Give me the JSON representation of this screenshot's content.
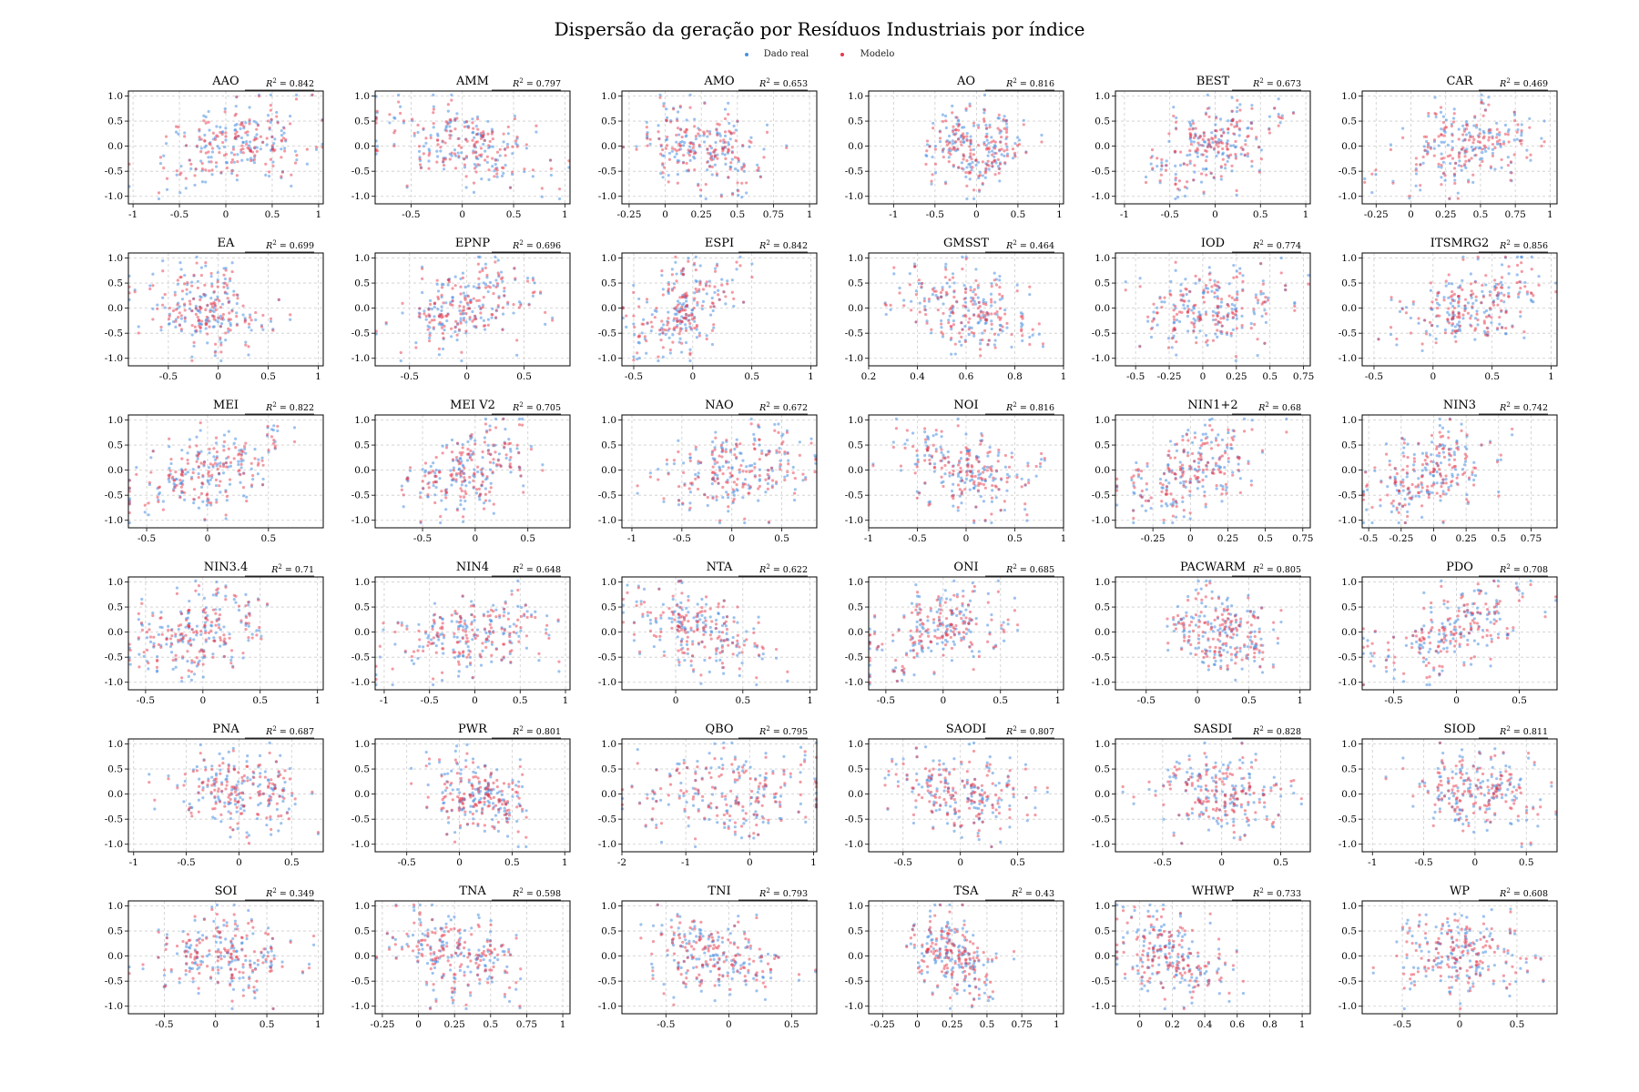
{
  "title": "Dispersão da geração por Resíduos Industriais por índice",
  "legend": [
    {
      "label": "Dado real",
      "color": "#4a90e2"
    },
    {
      "label": "Modelo",
      "color": "#e8374a"
    }
  ],
  "colors": {
    "real": "#4a90e2",
    "model": "#e8374a",
    "grid": "#cccccc",
    "axis": "#000000"
  },
  "chart_data": {
    "type": "scatter",
    "layout": "6x6 grid of small multiples",
    "grid": true,
    "ylim": [
      -1.15,
      1.1
    ],
    "yticks": [
      -1.0,
      -0.5,
      0.0,
      0.5,
      1.0
    ],
    "series_names": [
      "Dado real",
      "Modelo"
    ],
    "panels": [
      {
        "title": "AAO",
        "r2": "0.842",
        "xlim": [
          -1.05,
          1.05
        ],
        "xticks": [
          -1.0,
          -0.5,
          0.0,
          0.5,
          1.0
        ],
        "center": 0.1,
        "spread": 0.42,
        "slope": 0.4
      },
      {
        "title": "AMM",
        "r2": "0.797",
        "xlim": [
          -0.85,
          1.05
        ],
        "xticks": [
          -0.5,
          0.0,
          0.5,
          1.0
        ],
        "center": 0.0,
        "spread": 0.38,
        "slope": -0.5
      },
      {
        "title": "AMO",
        "r2": "0.653",
        "xlim": [
          -0.3,
          1.05
        ],
        "xticks": [
          -0.25,
          0.0,
          0.25,
          0.5,
          0.75,
          1.0
        ],
        "center": 0.25,
        "spread": 0.22,
        "slope": -0.3
      },
      {
        "title": "AO",
        "r2": "0.816",
        "xlim": [
          -1.3,
          1.05
        ],
        "xticks": [
          -1.0,
          -0.5,
          0.0,
          0.5,
          1.0
        ],
        "center": 0.0,
        "spread": 0.3,
        "slope": 0.1
      },
      {
        "title": "BEST",
        "r2": "0.673",
        "xlim": [
          -1.1,
          1.05
        ],
        "xticks": [
          -1.0,
          -0.5,
          0.0,
          0.5,
          1.0
        ],
        "center": -0.05,
        "spread": 0.35,
        "slope": 0.5
      },
      {
        "title": "CAR",
        "r2": "0.469",
        "xlim": [
          -0.35,
          1.05
        ],
        "xticks": [
          -0.25,
          0.0,
          0.25,
          0.5,
          0.75,
          1.0
        ],
        "center": 0.4,
        "spread": 0.25,
        "slope": 0.4
      },
      {
        "title": "EA",
        "r2": "0.699",
        "xlim": [
          -0.9,
          1.05
        ],
        "xticks": [
          -0.5,
          0.0,
          0.5,
          1.0
        ],
        "center": -0.1,
        "spread": 0.3,
        "slope": -0.2
      },
      {
        "title": "EPNP",
        "r2": "0.696",
        "xlim": [
          -0.8,
          0.9
        ],
        "xticks": [
          -0.5,
          0.0,
          0.5
        ],
        "center": 0.0,
        "spread": 0.28,
        "slope": 0.4
      },
      {
        "title": "ESPI",
        "r2": "0.842",
        "xlim": [
          -0.6,
          1.05
        ],
        "xticks": [
          -0.5,
          0.0,
          0.5,
          1.0
        ],
        "center": -0.1,
        "spread": 0.25,
        "slope": 0.5
      },
      {
        "title": "GMSST",
        "r2": "0.464",
        "xlim": [
          0.2,
          1.0
        ],
        "xticks": [
          0.2,
          0.4,
          0.6,
          0.8,
          1.0
        ],
        "center": 0.6,
        "spread": 0.14,
        "slope": -0.4
      },
      {
        "title": "IOD",
        "r2": "0.774",
        "xlim": [
          -0.65,
          0.8
        ],
        "xticks": [
          -0.5,
          -0.25,
          0.0,
          0.25,
          0.5,
          0.75
        ],
        "center": 0.05,
        "spread": 0.25,
        "slope": 0.2
      },
      {
        "title": "ITSMRG2",
        "r2": "0.856",
        "xlim": [
          -0.6,
          1.05
        ],
        "xticks": [
          -0.5,
          0.0,
          0.5,
          1.0
        ],
        "center": 0.3,
        "spread": 0.3,
        "slope": 0.5
      },
      {
        "title": "MEI",
        "r2": "0.822",
        "xlim": [
          -0.65,
          0.95
        ],
        "xticks": [
          -0.5,
          0.0,
          0.5
        ],
        "center": 0.0,
        "spread": 0.3,
        "slope": 0.7
      },
      {
        "title": "MEI V2",
        "r2": "0.705",
        "xlim": [
          -0.95,
          0.9
        ],
        "xticks": [
          -0.5,
          0.0,
          0.5
        ],
        "center": -0.1,
        "spread": 0.3,
        "slope": 0.6
      },
      {
        "title": "NAO",
        "r2": "0.672",
        "xlim": [
          -1.1,
          0.85
        ],
        "xticks": [
          -1.0,
          -0.5,
          0.0,
          0.5
        ],
        "center": 0.0,
        "spread": 0.35,
        "slope": 0.3
      },
      {
        "title": "NOI",
        "r2": "0.816",
        "xlim": [
          -1.0,
          1.0
        ],
        "xticks": [
          -1.0,
          -0.5,
          0.0,
          0.5,
          1.0
        ],
        "center": 0.0,
        "spread": 0.35,
        "slope": -0.3
      },
      {
        "title": "NIN1+2",
        "r2": "0.68",
        "xlim": [
          -0.5,
          0.8
        ],
        "xticks": [
          -0.25,
          0.0,
          0.25,
          0.5,
          0.75
        ],
        "center": 0.0,
        "spread": 0.22,
        "slope": 0.5
      },
      {
        "title": "NIN3",
        "r2": "0.742",
        "xlim": [
          -0.55,
          0.95
        ],
        "xticks": [
          -0.5,
          -0.25,
          0.0,
          0.25,
          0.5,
          0.75
        ],
        "center": 0.0,
        "spread": 0.25,
        "slope": 0.7
      },
      {
        "title": "NIN3.4",
        "r2": "0.71",
        "xlim": [
          -0.65,
          1.05
        ],
        "xticks": [
          -0.5,
          0.0,
          0.5,
          1.0
        ],
        "center": -0.05,
        "spread": 0.3,
        "slope": 0.4
      },
      {
        "title": "NIN4",
        "r2": "0.648",
        "xlim": [
          -1.1,
          1.05
        ],
        "xticks": [
          -1.0,
          -0.5,
          0.0,
          0.5,
          1.0
        ],
        "center": 0.0,
        "spread": 0.4,
        "slope": 0.3
      },
      {
        "title": "NTA",
        "r2": "0.622",
        "xlim": [
          -0.4,
          1.05
        ],
        "xticks": [
          0.0,
          0.5,
          1.0
        ],
        "center": 0.2,
        "spread": 0.25,
        "slope": -0.5
      },
      {
        "title": "ONI",
        "r2": "0.685",
        "xlim": [
          -0.65,
          1.05
        ],
        "xticks": [
          -0.5,
          0.0,
          0.5,
          1.0
        ],
        "center": -0.05,
        "spread": 0.3,
        "slope": 0.5
      },
      {
        "title": "PACWARM",
        "r2": "0.805",
        "xlim": [
          -0.8,
          1.1
        ],
        "xticks": [
          -0.5,
          0.0,
          0.5,
          1.0
        ],
        "center": 0.25,
        "spread": 0.25,
        "slope": -0.4
      },
      {
        "title": "PDO",
        "r2": "0.708",
        "xlim": [
          -0.75,
          0.8
        ],
        "xticks": [
          -0.5,
          0.0,
          0.5
        ],
        "center": -0.05,
        "spread": 0.28,
        "slope": 0.6
      },
      {
        "title": "PNA",
        "r2": "0.687",
        "xlim": [
          -1.05,
          0.8
        ],
        "xticks": [
          -1.0,
          -0.5,
          0.0,
          0.5
        ],
        "center": 0.0,
        "spread": 0.3,
        "slope": -0.3
      },
      {
        "title": "PWR",
        "r2": "0.801",
        "xlim": [
          -0.8,
          1.05
        ],
        "xticks": [
          -0.5,
          0.0,
          0.5,
          1.0
        ],
        "center": 0.2,
        "spread": 0.25,
        "slope": -0.4
      },
      {
        "title": "QBO",
        "r2": "0.795",
        "xlim": [
          -2.0,
          1.05
        ],
        "xticks": [
          -2,
          -1,
          0,
          1
        ],
        "center": -0.3,
        "spread": 0.8,
        "slope": 0.15
      },
      {
        "title": "SAODI",
        "r2": "0.807",
        "xlim": [
          -0.8,
          0.9
        ],
        "xticks": [
          -0.5,
          0.0,
          0.5
        ],
        "center": 0.0,
        "spread": 0.3,
        "slope": -0.2
      },
      {
        "title": "SASDI",
        "r2": "0.828",
        "xlim": [
          -0.9,
          0.75
        ],
        "xticks": [
          -0.5,
          0.0,
          0.5
        ],
        "center": 0.0,
        "spread": 0.25,
        "slope": -0.2
      },
      {
        "title": "SIOD",
        "r2": "0.811",
        "xlim": [
          -1.1,
          0.8
        ],
        "xticks": [
          -1.0,
          -0.5,
          0.0,
          0.5
        ],
        "center": 0.0,
        "spread": 0.3,
        "slope": -0.3
      },
      {
        "title": "SOI",
        "r2": "0.349",
        "xlim": [
          -0.85,
          1.05
        ],
        "xticks": [
          -0.5,
          0.0,
          0.5,
          1.0
        ],
        "center": 0.1,
        "spread": 0.35,
        "slope": -0.2
      },
      {
        "title": "TNA",
        "r2": "0.598",
        "xlim": [
          -0.3,
          1.05
        ],
        "xticks": [
          -0.25,
          0.0,
          0.25,
          0.5,
          0.75,
          1.0
        ],
        "center": 0.25,
        "spread": 0.22,
        "slope": -0.4
      },
      {
        "title": "TNI",
        "r2": "0.793",
        "xlim": [
          -0.85,
          0.7
        ],
        "xticks": [
          -0.5,
          0.0,
          0.5
        ],
        "center": -0.1,
        "spread": 0.3,
        "slope": -0.2
      },
      {
        "title": "TSA",
        "r2": "0.43",
        "xlim": [
          -0.35,
          1.05
        ],
        "xticks": [
          -0.25,
          0.0,
          0.25,
          0.5,
          0.75,
          1.0
        ],
        "center": 0.25,
        "spread": 0.15,
        "slope": -0.3
      },
      {
        "title": "WHWP",
        "r2": "0.733",
        "xlim": [
          -0.15,
          1.05
        ],
        "xticks": [
          0.0,
          0.2,
          0.4,
          0.6,
          0.8,
          1.0
        ],
        "center": 0.2,
        "spread": 0.2,
        "slope": -0.4
      },
      {
        "title": "WP",
        "r2": "0.608",
        "xlim": [
          -0.85,
          0.85
        ],
        "xticks": [
          -0.5,
          0.0,
          0.5
        ],
        "center": 0.0,
        "spread": 0.3,
        "slope": -0.2
      }
    ]
  }
}
